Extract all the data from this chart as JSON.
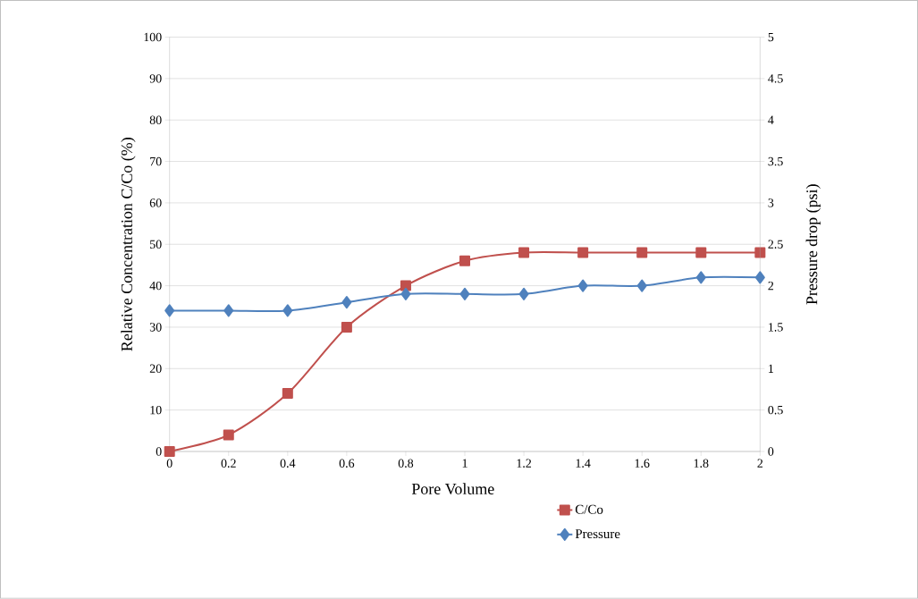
{
  "chart_data": {
    "type": "line",
    "xlabel": "Pore Volume",
    "ylabel": "Relative  Concentration C/Co (%)",
    "y2label": "Pressure drop (psi)",
    "x": [
      0,
      0.2,
      0.4,
      0.6,
      0.8,
      1,
      1.2,
      1.4,
      1.6,
      1.8,
      2
    ],
    "series": [
      {
        "name": "C/Co",
        "color": "#c0504d",
        "marker": "square",
        "values": [
          0,
          4,
          14,
          30,
          40,
          46,
          48,
          48,
          48,
          48,
          48
        ]
      },
      {
        "name": "Pressure",
        "color": "#4f81bd",
        "marker": "diamond",
        "axis": "y2",
        "values": [
          1.7,
          1.7,
          1.7,
          1.8,
          1.9,
          1.9,
          1.9,
          2.0,
          2.0,
          2.1,
          2.1
        ]
      }
    ],
    "xlim": [
      0,
      2
    ],
    "xticks": [
      0,
      0.2,
      0.4,
      0.6,
      0.8,
      1,
      1.2,
      1.4,
      1.6,
      1.8,
      2
    ],
    "ylim": [
      0,
      100
    ],
    "yticks": [
      0,
      10,
      20,
      30,
      40,
      50,
      60,
      70,
      80,
      90,
      100
    ],
    "y2lim": [
      0,
      5
    ],
    "y2ticks": [
      0,
      0.5,
      1,
      1.5,
      2,
      2.5,
      3,
      3.5,
      4,
      4.5,
      5
    ],
    "grid": "y",
    "legend": "bottom right"
  }
}
